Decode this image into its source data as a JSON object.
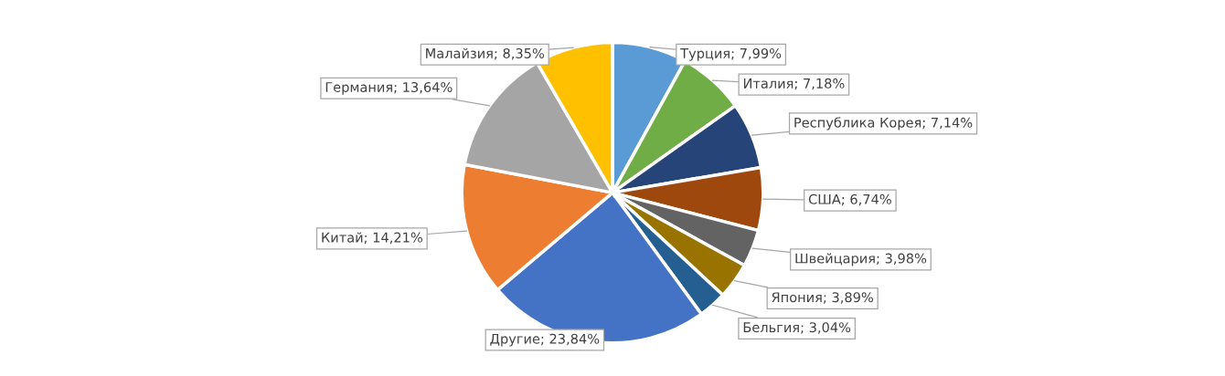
{
  "chart_data": {
    "type": "pie",
    "categories": [
      "Турция",
      "Италия",
      "Республика Корея",
      "США",
      "Швейцария",
      "Япония",
      "Бельгия",
      "Другие",
      "Китай",
      "Германия",
      "Малайзия"
    ],
    "values": [
      7.99,
      7.18,
      7.14,
      6.74,
      3.98,
      3.89,
      3.04,
      23.84,
      14.21,
      13.64,
      8.35
    ],
    "value_labels": [
      "7,99%",
      "7,18%",
      "7,14%",
      "6,74%",
      "3,98%",
      "3,89%",
      "3,04%",
      "23,84%",
      "14,21%",
      "13,64%",
      "8,35%"
    ],
    "colors": [
      "#5b9bd5",
      "#70ad47",
      "#264478",
      "#9e480e",
      "#636363",
      "#997300",
      "#255e91",
      "#4472c4",
      "#ed7d31",
      "#a5a5a5",
      "#ffc000"
    ],
    "legend": false
  }
}
